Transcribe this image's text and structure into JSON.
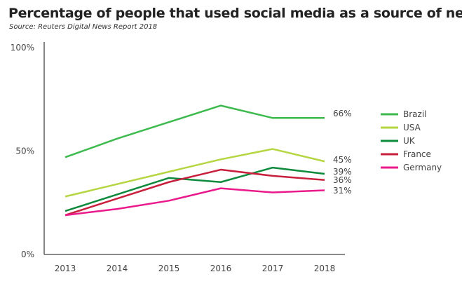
{
  "chart_data": {
    "type": "line",
    "title": "Percentage of people that used social media as a source of news",
    "subtitle": "Source: Reuters Digital News Report 2018",
    "x": [
      "2013",
      "2014",
      "2015",
      "2016",
      "2017",
      "2018"
    ],
    "ylim": [
      0,
      100
    ],
    "yticks": [
      "0%",
      "50%",
      "100%"
    ],
    "grid": false,
    "legend": "right",
    "series": [
      {
        "name": "Brazil",
        "color": "#3dba4e",
        "values": [
          47,
          56,
          64,
          72,
          66,
          66
        ],
        "end_label": "66%"
      },
      {
        "name": "USA",
        "color": "#b5d642",
        "values": [
          28,
          34,
          40,
          46,
          51,
          45
        ],
        "end_label": "45%"
      },
      {
        "name": "UK",
        "color": "#0e8a3c",
        "values": [
          21,
          29,
          37,
          35,
          42,
          39
        ],
        "end_label": "39%"
      },
      {
        "name": "France",
        "color": "#c8203c",
        "values": [
          19,
          27,
          35,
          41,
          38,
          36
        ],
        "end_label": "36%"
      },
      {
        "name": "Germany",
        "color": "#ea1a8c",
        "values": [
          19,
          22,
          26,
          32,
          30,
          31
        ],
        "end_label": "31%"
      }
    ]
  }
}
